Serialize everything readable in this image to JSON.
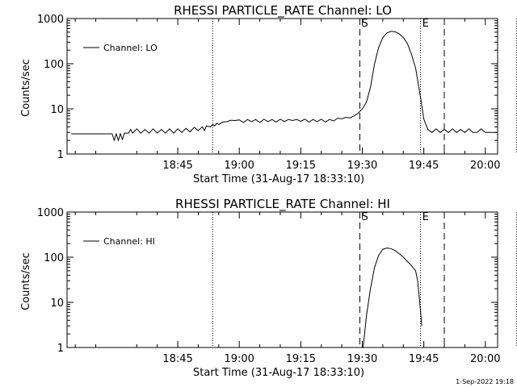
{
  "chart_data": [
    {
      "type": "line",
      "title": "RHESSI PARTICLE_RATE Channel: LO",
      "xlabel": "Start Time (31-Aug-17 18:33:10)",
      "ylabel": "Counts/sec",
      "yscale": "log",
      "ylim": [
        1,
        1000
      ],
      "xlim_min": [
        -15,
        90
      ],
      "y_ticks": [
        1,
        10,
        100,
        1000
      ],
      "y_tick_labels": [
        "1",
        "10",
        "100",
        "1000"
      ],
      "x_ticks_min": [
        12,
        27,
        42,
        57,
        72,
        87
      ],
      "x_tick_labels": [
        "18:45",
        "19:00",
        "19:15",
        "19:30",
        "19:45",
        "20:00"
      ],
      "dotted_lines_min": [
        20.5,
        71.2,
        94.6
      ],
      "dashed_lines_min": [
        56.4,
        77.0
      ],
      "markers": [
        {
          "label": "S",
          "x_min": 56.4
        },
        {
          "label": "E",
          "x_min": 71.2
        }
      ],
      "legend": {
        "label": "Channel: LO",
        "position": "top-left"
      },
      "series": [
        {
          "name": "Channel: LO",
          "points": [
            [
              -14,
              2.8
            ],
            [
              -4,
              2.8
            ],
            [
              -3.5,
              2.0
            ],
            [
              -3,
              2.8
            ],
            [
              -2.5,
              2.0
            ],
            [
              -2,
              2.8
            ],
            [
              -1.5,
              2.1
            ],
            [
              -1,
              2.9
            ],
            [
              0,
              2.9
            ],
            [
              0.5,
              3.5
            ],
            [
              1,
              2.9
            ],
            [
              2,
              3.6
            ],
            [
              3,
              2.9
            ],
            [
              4,
              3.5
            ],
            [
              5,
              2.9
            ],
            [
              6,
              3.6
            ],
            [
              7,
              2.9
            ],
            [
              8,
              3.5
            ],
            [
              9,
              2.9
            ],
            [
              10,
              3.6
            ],
            [
              11,
              2.9
            ],
            [
              12,
              3.6
            ],
            [
              13,
              3.0
            ],
            [
              14,
              3.7
            ],
            [
              15,
              3.1
            ],
            [
              16,
              3.9
            ],
            [
              17,
              3.3
            ],
            [
              18,
              4.0
            ],
            [
              18.5,
              3.3
            ],
            [
              19,
              4.2
            ],
            [
              20,
              4.0
            ],
            [
              20.5,
              4.5
            ],
            [
              21,
              4.2
            ],
            [
              21.5,
              4.8
            ],
            [
              22,
              4.5
            ],
            [
              23,
              5.1
            ],
            [
              24,
              5.2
            ],
            [
              25,
              5.6
            ],
            [
              26,
              5.5
            ],
            [
              27,
              5.7
            ],
            [
              28,
              5.0
            ],
            [
              29,
              5.8
            ],
            [
              30,
              5.2
            ],
            [
              31,
              5.8
            ],
            [
              32,
              5.0
            ],
            [
              33,
              5.9
            ],
            [
              34,
              5.2
            ],
            [
              35,
              5.8
            ],
            [
              36,
              5.1
            ],
            [
              37,
              5.9
            ],
            [
              38,
              5.2
            ],
            [
              39,
              5.8
            ],
            [
              40,
              5.5
            ],
            [
              41,
              5.8
            ],
            [
              42,
              5.3
            ],
            [
              43,
              5.9
            ],
            [
              44,
              5.1
            ],
            [
              45,
              5.8
            ],
            [
              46,
              5.2
            ],
            [
              47,
              5.9
            ],
            [
              48,
              5.1
            ],
            [
              49,
              5.8
            ],
            [
              50,
              5.4
            ],
            [
              51,
              6.2
            ],
            [
              52,
              6.0
            ],
            [
              53,
              6.5
            ],
            [
              54,
              6.3
            ],
            [
              55,
              7.0
            ],
            [
              56,
              8.0
            ],
            [
              57,
              10
            ],
            [
              58,
              14
            ],
            [
              59,
              30
            ],
            [
              60,
              100
            ],
            [
              61,
              230
            ],
            [
              62,
              380
            ],
            [
              63,
              480
            ],
            [
              64,
              520
            ],
            [
              65,
              510
            ],
            [
              66,
              460
            ],
            [
              67,
              380
            ],
            [
              68,
              280
            ],
            [
              69,
              160
            ],
            [
              70,
              80
            ],
            [
              70.8,
              30
            ],
            [
              71.5,
              12
            ],
            [
              72,
              6
            ],
            [
              72.5,
              4.5
            ],
            [
              73,
              3.5
            ],
            [
              74,
              3.0
            ],
            [
              75,
              3.6
            ],
            [
              76,
              3.0
            ],
            [
              77,
              3.5
            ],
            [
              78,
              3.0
            ],
            [
              79,
              3.6
            ],
            [
              80,
              3.0
            ],
            [
              81,
              3.5
            ],
            [
              82,
              3.0
            ],
            [
              83,
              3.6
            ],
            [
              84,
              3.0
            ],
            [
              85,
              3.0
            ],
            [
              86,
              3.6
            ],
            [
              87,
              3.0
            ],
            [
              88,
              3.0
            ],
            [
              89,
              3.0
            ],
            [
              90,
              3.0
            ],
            [
              91,
              3.5
            ],
            [
              92,
              3.0
            ],
            [
              93,
              3.0
            ],
            [
              93.5,
              2.9
            ]
          ]
        }
      ]
    },
    {
      "type": "line",
      "title": "RHESSI PARTICLE_RATE Channel: HI",
      "xlabel": "Start Time (31-Aug-17 18:33:10)",
      "ylabel": "Counts/sec",
      "yscale": "log",
      "ylim": [
        1,
        1000
      ],
      "xlim_min": [
        -15,
        90
      ],
      "y_ticks": [
        1,
        10,
        100,
        1000
      ],
      "y_tick_labels": [
        "1",
        "10",
        "100",
        "1000"
      ],
      "x_ticks_min": [
        12,
        27,
        42,
        57,
        72,
        87
      ],
      "x_tick_labels": [
        "18:45",
        "19:00",
        "19:15",
        "19:30",
        "19:45",
        "20:00"
      ],
      "dotted_lines_min": [
        20.5,
        71.2,
        94.6
      ],
      "dashed_lines_min": [
        56.4,
        77.0
      ],
      "markers": [
        {
          "label": "S",
          "x_min": 56.4
        },
        {
          "label": "E",
          "x_min": 71.2
        }
      ],
      "legend": {
        "label": "Channel: HI",
        "position": "top-left"
      },
      "series": [
        {
          "name": "Channel: HI",
          "points": [
            [
              57.2,
              1.0
            ],
            [
              58,
              5
            ],
            [
              59,
              20
            ],
            [
              60,
              60
            ],
            [
              61,
              110
            ],
            [
              62,
              150
            ],
            [
              63,
              160
            ],
            [
              64,
              155
            ],
            [
              65,
              140
            ],
            [
              66,
              120
            ],
            [
              67,
              100
            ],
            [
              68,
              80
            ],
            [
              69,
              65
            ],
            [
              70,
              50
            ],
            [
              70.5,
              30
            ],
            [
              71,
              10
            ],
            [
              71.5,
              3
            ]
          ]
        }
      ]
    }
  ],
  "footer": {
    "timestamp": "1-Sep-2022 19:18"
  }
}
